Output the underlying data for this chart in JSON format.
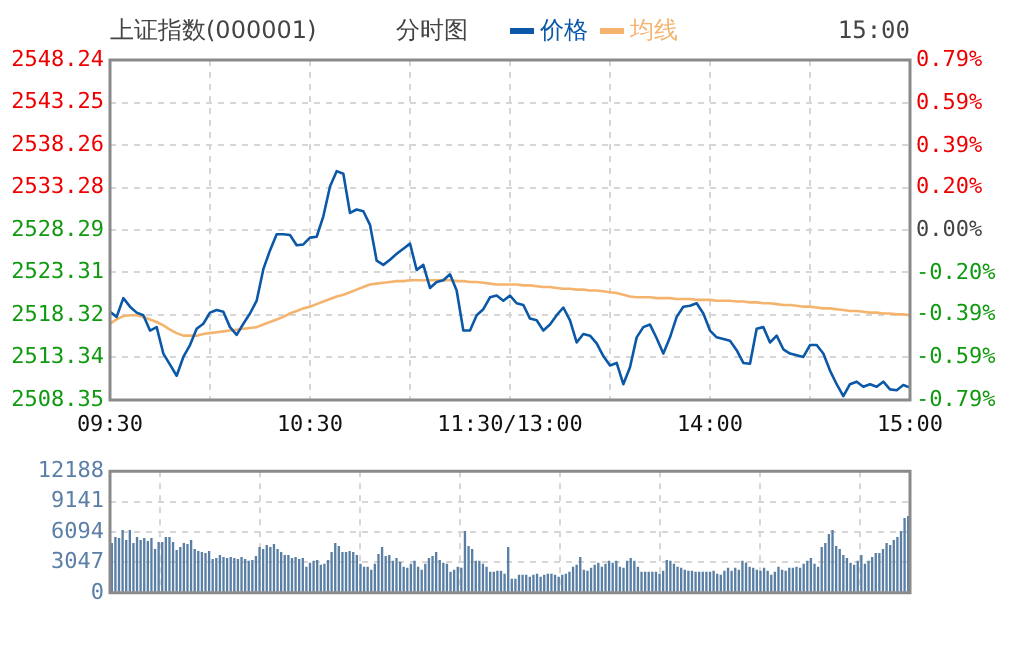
{
  "chart_data": [
    {
      "type": "line",
      "title": "上证指数(000001)",
      "subtitle": "分时图",
      "annotations": [
        "15:00"
      ],
      "legend": "top",
      "grid": true,
      "marker": "none",
      "line_style": "solid",
      "categories": [
        "09:30",
        null,
        null,
        null,
        null,
        null,
        null,
        null,
        null,
        null,
        null,
        null,
        null,
        null,
        null,
        null,
        null,
        null,
        null,
        null,
        null,
        null,
        null,
        null,
        null,
        null,
        null,
        null,
        null,
        null,
        "10:30",
        null,
        null,
        null,
        null,
        null,
        null,
        null,
        null,
        null,
        null,
        null,
        null,
        null,
        null,
        null,
        null,
        null,
        null,
        null,
        null,
        null,
        null,
        null,
        null,
        null,
        null,
        null,
        null,
        null,
        "11:30/13:00",
        null,
        null,
        null,
        null,
        null,
        null,
        null,
        null,
        null,
        null,
        null,
        null,
        null,
        null,
        null,
        null,
        null,
        null,
        null,
        null,
        null,
        null,
        null,
        null,
        null,
        null,
        null,
        null,
        null,
        "14:00",
        null,
        null,
        null,
        null,
        null,
        null,
        null,
        null,
        null,
        null,
        null,
        null,
        null,
        null,
        null,
        null,
        null,
        null,
        null,
        null,
        null,
        null,
        null,
        null,
        null,
        null,
        null,
        null,
        null,
        "15:00"
      ],
      "ylim": [
        2508.35,
        2548.24
      ],
      "yticks": [
        2508.35,
        2513.34,
        2518.32,
        2523.31,
        2528.29,
        2533.28,
        2538.26,
        2543.25,
        2548.24
      ],
      "y2lim": [
        -0.79,
        0.79
      ],
      "y2ticks": [
        {
          "value": -0.79,
          "label": "-0.79%"
        },
        {
          "value": -0.59,
          "label": "-0.59%"
        },
        {
          "value": -0.39,
          "label": "-0.39%"
        },
        {
          "value": -0.2,
          "label": "-0.20%"
        },
        {
          "value": 0,
          "label": "0.00%"
        },
        {
          "value": 0.2,
          "label": "0.20%"
        },
        {
          "value": 0.39,
          "label": "0.39%"
        },
        {
          "value": 0.59,
          "label": "0.59%"
        },
        {
          "value": 0.79,
          "label": "0.79%"
        }
      ],
      "series": [
        {
          "name": "价格",
          "color": "#0b58a8",
          "values": [
            2518.7,
            2518.1,
            2520.3,
            2519.3,
            2518.6,
            2518.3,
            2516.5,
            2516.9,
            2513.8,
            2512.5,
            2511.2,
            2513.4,
            2514.8,
            2516.7,
            2517.3,
            2518.6,
            2518.9,
            2518.7,
            2516.9,
            2516.0,
            2517.3,
            2518.5,
            2520.0,
            2523.7,
            2525.9,
            2527.8,
            2527.8,
            2527.7,
            2526.5,
            2526.6,
            2527.4,
            2527.5,
            2529.9,
            2533.4,
            2535.2,
            2534.9,
            2530.3,
            2530.7,
            2530.5,
            2528.9,
            2524.7,
            2524.2,
            2524.8,
            2525.5,
            2526.1,
            2526.7,
            2523.6,
            2524.2,
            2521.5,
            2522.2,
            2522.4,
            2523.1,
            2521.2,
            2516.5,
            2516.5,
            2518.3,
            2519.0,
            2520.4,
            2520.6,
            2520.0,
            2520.6,
            2519.7,
            2519.5,
            2517.9,
            2517.7,
            2516.5,
            2517.2,
            2518.3,
            2519.2,
            2517.7,
            2515.1,
            2516.1,
            2515.9,
            2515.0,
            2513.5,
            2512.4,
            2512.7,
            2510.2,
            2512.2,
            2515.7,
            2516.9,
            2517.2,
            2515.6,
            2513.8,
            2515.7,
            2518.1,
            2519.3,
            2519.4,
            2519.7,
            2518.5,
            2516.5,
            2515.7,
            2515.5,
            2515.3,
            2514.2,
            2512.7,
            2512.6,
            2516.7,
            2516.9,
            2515.1,
            2515.9,
            2514.3,
            2513.8,
            2513.6,
            2513.4,
            2514.8,
            2514.8,
            2513.8,
            2511.8,
            2510.2,
            2508.8,
            2510.2,
            2510.5,
            2509.9,
            2510.2,
            2509.9,
            2510.5,
            2509.6,
            2509.5,
            2510.1,
            2509.8
          ]
        },
        {
          "name": "均线",
          "color": "#f5b46e",
          "values": [
            2517.3,
            2517.8,
            2518.2,
            2518.3,
            2518.3,
            2518.1,
            2517.8,
            2517.5,
            2517.1,
            2516.6,
            2516.2,
            2515.9,
            2515.9,
            2515.9,
            2516.1,
            2516.2,
            2516.3,
            2516.4,
            2516.5,
            2516.6,
            2516.7,
            2516.8,
            2516.9,
            2517.2,
            2517.5,
            2517.8,
            2518.1,
            2518.5,
            2518.8,
            2519.1,
            2519.3,
            2519.6,
            2519.9,
            2520.2,
            2520.5,
            2520.7,
            2521.0,
            2521.3,
            2521.6,
            2521.9,
            2522.0,
            2522.1,
            2522.2,
            2522.3,
            2522.3,
            2522.4,
            2522.4,
            2522.4,
            2522.4,
            2522.4,
            2522.4,
            2522.4,
            2522.3,
            2522.3,
            2522.2,
            2522.2,
            2522.1,
            2522.0,
            2521.9,
            2521.9,
            2521.9,
            2521.9,
            2521.8,
            2521.8,
            2521.7,
            2521.6,
            2521.6,
            2521.5,
            2521.4,
            2521.4,
            2521.3,
            2521.3,
            2521.2,
            2521.2,
            2521.1,
            2521.0,
            2520.9,
            2520.7,
            2520.5,
            2520.4,
            2520.4,
            2520.4,
            2520.3,
            2520.3,
            2520.3,
            2520.2,
            2520.2,
            2520.2,
            2520.1,
            2520.1,
            2520.1,
            2520.0,
            2520.0,
            2520.0,
            2519.9,
            2519.9,
            2519.8,
            2519.8,
            2519.7,
            2519.7,
            2519.6,
            2519.5,
            2519.5,
            2519.4,
            2519.3,
            2519.3,
            2519.2,
            2519.1,
            2519.1,
            2519.0,
            2518.9,
            2518.8,
            2518.8,
            2518.7,
            2518.6,
            2518.6,
            2518.5,
            2518.5,
            2518.4,
            2518.4,
            2518.3
          ]
        }
      ]
    },
    {
      "type": "bar",
      "color": "#5a7fa4",
      "grid": true,
      "tick_labels": "y",
      "ylim": [
        0,
        12188
      ],
      "yticks": [
        0,
        3047,
        6094,
        9141,
        12188
      ],
      "categories": [
        null,
        null,
        null,
        null,
        null,
        null,
        null,
        null,
        null,
        null,
        null,
        null,
        null,
        null,
        null,
        null,
        null,
        null,
        null,
        null,
        null,
        null,
        null,
        null,
        null,
        null,
        null,
        null,
        null,
        null,
        null,
        null,
        null,
        null,
        null,
        null,
        null,
        null,
        null,
        null,
        null,
        null,
        null,
        null,
        null,
        null,
        null,
        null,
        null,
        null,
        null,
        null,
        null,
        null,
        null,
        null,
        null,
        null,
        null,
        null,
        null,
        null,
        null,
        null,
        null,
        null,
        null,
        null,
        null,
        null,
        null,
        null,
        null,
        null,
        null,
        null,
        null,
        null,
        null,
        null,
        null,
        null,
        null,
        null,
        null,
        null,
        null,
        null,
        null,
        null,
        null,
        null,
        null,
        null,
        null,
        null,
        null,
        null,
        null,
        null,
        null,
        null,
        null,
        null,
        null,
        null,
        null,
        null,
        null,
        null,
        null,
        null,
        null,
        null,
        null,
        null,
        null,
        null,
        null,
        null,
        null,
        null,
        null,
        null,
        null,
        null,
        null,
        null,
        null,
        null,
        null,
        null,
        null,
        null,
        null,
        null,
        null,
        null,
        null,
        null,
        null,
        null,
        null,
        null,
        null,
        null,
        null,
        null,
        null,
        null,
        null,
        null,
        null,
        null,
        null,
        null,
        null,
        null,
        null,
        null,
        null,
        null,
        null,
        null,
        null,
        null,
        null,
        null,
        null,
        null,
        null,
        null,
        null,
        null,
        null,
        null,
        null,
        null,
        null,
        null,
        null,
        null,
        null,
        null,
        null,
        null,
        null,
        null,
        null,
        null,
        null,
        null,
        null,
        null,
        null,
        null,
        null,
        null,
        null,
        null,
        null,
        null,
        null,
        null,
        null,
        null,
        null,
        null,
        null,
        null,
        null,
        null,
        null,
        null,
        null,
        null,
        null,
        null,
        null,
        null,
        null,
        null
      ],
      "values": [
        5000,
        5600,
        5500,
        6300,
        5300,
        6300,
        5000,
        5600,
        5300,
        5500,
        5200,
        5500,
        4400,
        5100,
        5100,
        5600,
        5600,
        5100,
        4300,
        4600,
        5000,
        4900,
        5300,
        4400,
        4200,
        4100,
        4000,
        4200,
        3400,
        3500,
        3800,
        3600,
        3500,
        3600,
        3500,
        3400,
        3600,
        3400,
        3200,
        3300,
        3700,
        4600,
        4400,
        4800,
        4600,
        4900,
        4400,
        4100,
        3800,
        3800,
        3500,
        3600,
        3400,
        3500,
        2600,
        3000,
        3200,
        3300,
        2800,
        2900,
        3300,
        4100,
        5000,
        4700,
        4100,
        4100,
        4200,
        4100,
        3800,
        2900,
        2600,
        2600,
        2300,
        2900,
        3900,
        4600,
        3700,
        3800,
        3200,
        3500,
        3100,
        2600,
        2500,
        2900,
        3200,
        2600,
        2300,
        2900,
        3500,
        3700,
        4100,
        3300,
        3000,
        2900,
        2100,
        2300,
        2600,
        2500,
        6200,
        4700,
        4400,
        3200,
        3200,
        2900,
        2600,
        2100,
        2100,
        2200,
        2200,
        1900,
        4600,
        1400,
        1400,
        1800,
        1800,
        1800,
        1600,
        1800,
        1900,
        1600,
        1800,
        1900,
        1900,
        1800,
        1600,
        1800,
        1900,
        2100,
        2600,
        2800,
        3600,
        2300,
        2200,
        2500,
        2800,
        3000,
        2600,
        2900,
        3200,
        3000,
        3200,
        2600,
        2500,
        3200,
        3500,
        3200,
        2600,
        2100,
        2100,
        2100,
        2100,
        2100,
        1900,
        2200,
        3300,
        3200,
        2900,
        2600,
        2500,
        2300,
        2200,
        2200,
        2100,
        2100,
        2100,
        2100,
        2100,
        2200,
        1900,
        1800,
        2200,
        2500,
        2200,
        2500,
        2300,
        3200,
        3000,
        2600,
        2500,
        2300,
        2200,
        2500,
        2200,
        1800,
        2100,
        2600,
        2300,
        2200,
        2500,
        2500,
        2600,
        2500,
        2900,
        3200,
        3500,
        2900,
        2600,
        4600,
        5000,
        5900,
        6300,
        4700,
        4400,
        3800,
        3500,
        3000,
        2800,
        3200,
        3800,
        2900,
        3200,
        3600,
        4000,
        4000,
        4400,
        5000,
        4800,
        5300,
        5600,
        6200,
        7500,
        7700
      ]
    }
  ]
}
